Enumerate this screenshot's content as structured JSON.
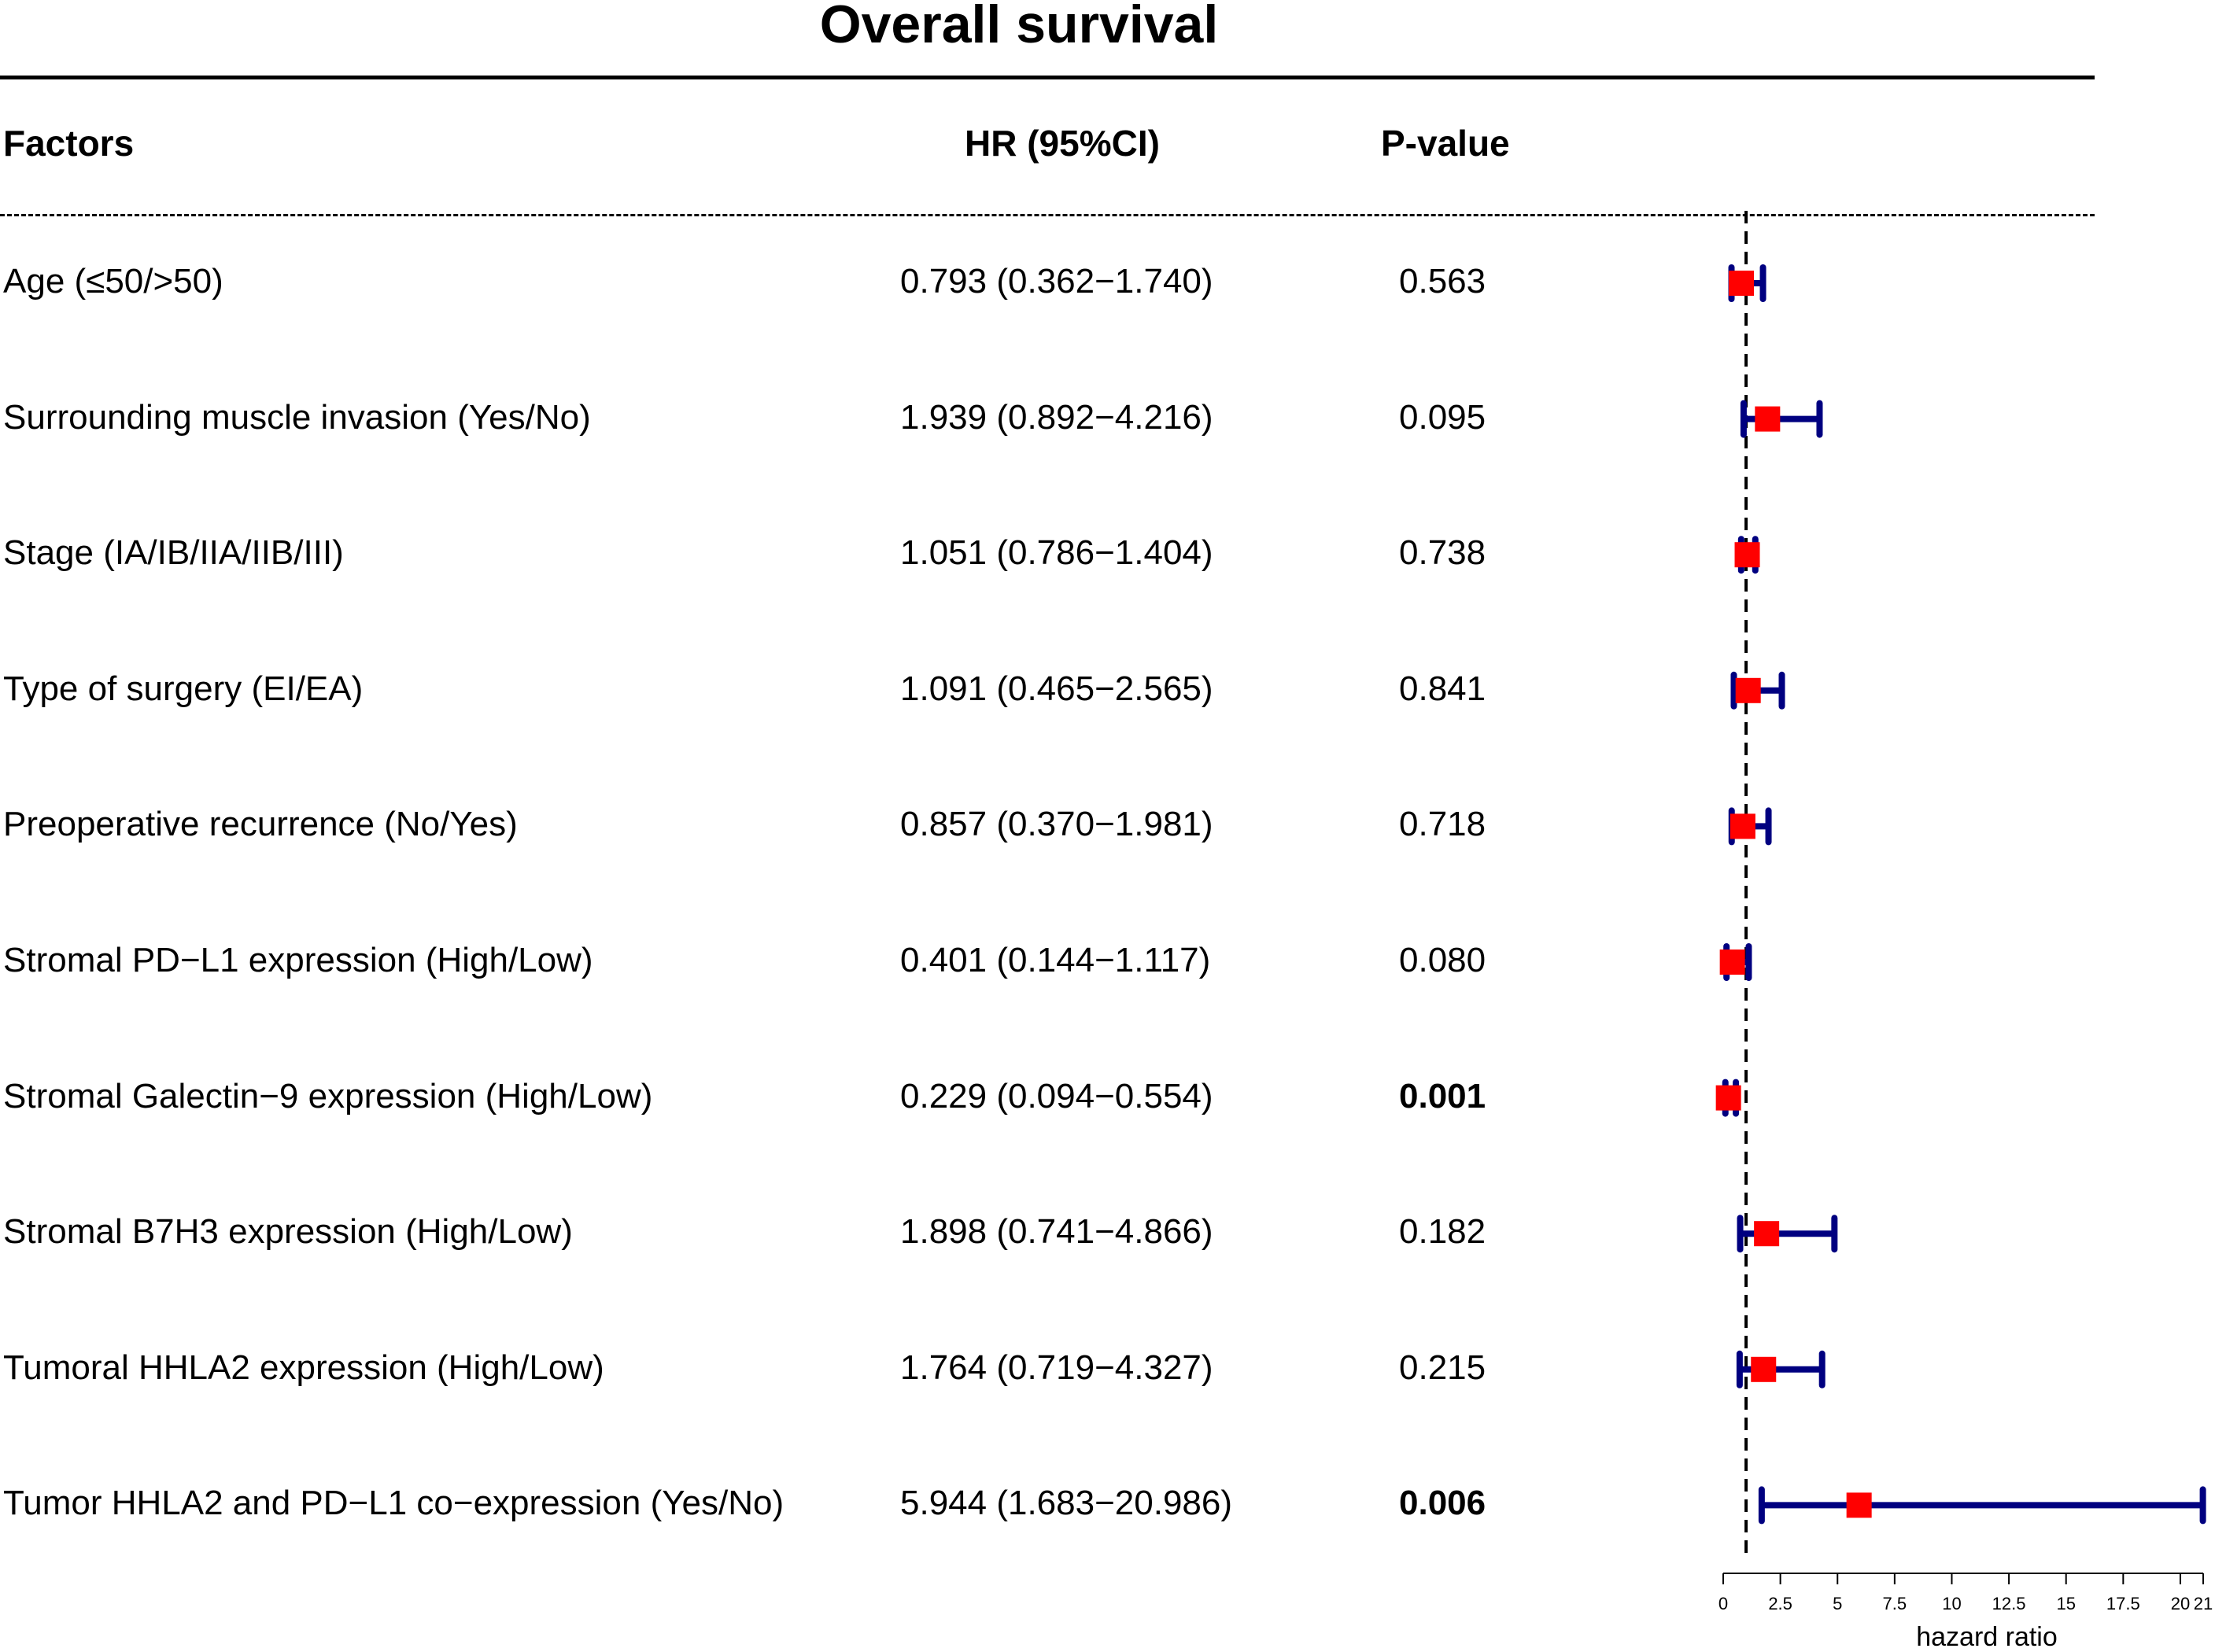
{
  "chart_data": {
    "type": "forest",
    "title": "Overall survival",
    "columns": {
      "factor": "Factors",
      "hr": "HR (95%CI)",
      "p": "P-value"
    },
    "xlabel": "hazard ratio",
    "xlim": [
      0,
      21
    ],
    "xticks": [
      "0",
      "2.5",
      "5",
      "7.5",
      "10",
      "12.5",
      "15",
      "17.5",
      "20",
      "21"
    ],
    "xtick_values": [
      0,
      2.5,
      5,
      7.5,
      10,
      12.5,
      15,
      17.5,
      20,
      21
    ],
    "reference_line": 1,
    "colors": {
      "point": "#ff0000",
      "ci": "#000080",
      "axis": "#000000"
    },
    "rows": [
      {
        "factor": "Age (≤50/>50)",
        "hr_text": "0.793 (0.362−1.740)",
        "p": "0.563",
        "p_bold": false,
        "hr": 0.793,
        "lo": 0.362,
        "hi": 1.74
      },
      {
        "factor": "Surrounding muscle invasion (Yes/No)",
        "hr_text": "1.939 (0.892−4.216)",
        "p": "0.095",
        "p_bold": false,
        "hr": 1.939,
        "lo": 0.892,
        "hi": 4.216
      },
      {
        "factor": "Stage (IA/IB/IIA/IIB/III)",
        "hr_text": "1.051 (0.786−1.404)",
        "p": "0.738",
        "p_bold": false,
        "hr": 1.051,
        "lo": 0.786,
        "hi": 1.404
      },
      {
        "factor": "Type of surgery (EI/EA)",
        "hr_text": "1.091 (0.465−2.565)",
        "p": "0.841",
        "p_bold": false,
        "hr": 1.091,
        "lo": 0.465,
        "hi": 2.565
      },
      {
        "factor": "Preoperative recurrence (No/Yes)",
        "hr_text": "0.857 (0.370−1.981)",
        "p": "0.718",
        "p_bold": false,
        "hr": 0.857,
        "lo": 0.37,
        "hi": 1.981
      },
      {
        "factor": "Stromal PD−L1 expression (High/Low)",
        "hr_text": "0.401 (0.144−1.117)",
        "p": "0.080",
        "p_bold": false,
        "hr": 0.401,
        "lo": 0.144,
        "hi": 1.117
      },
      {
        "factor": "Stromal Galectin−9 expression (High/Low)",
        "hr_text": "0.229 (0.094−0.554)",
        "p": "0.001",
        "p_bold": true,
        "hr": 0.229,
        "lo": 0.094,
        "hi": 0.554
      },
      {
        "factor": "Stromal B7H3 expression (High/Low)",
        "hr_text": "1.898 (0.741−4.866)",
        "p": "0.182",
        "p_bold": false,
        "hr": 1.898,
        "lo": 0.741,
        "hi": 4.866
      },
      {
        "factor": "Tumoral HHLA2 expression (High/Low)",
        "hr_text": "1.764 (0.719−4.327)",
        "p": "0.215",
        "p_bold": false,
        "hr": 1.764,
        "lo": 0.719,
        "hi": 4.327
      },
      {
        "factor": "Tumor HHLA2 and PD−L1 co−expression (Yes/No)",
        "hr_text": "5.944 (1.683−20.986)",
        "p": "0.006",
        "p_bold": true,
        "hr": 5.944,
        "lo": 1.683,
        "hi": 20.986
      }
    ]
  }
}
